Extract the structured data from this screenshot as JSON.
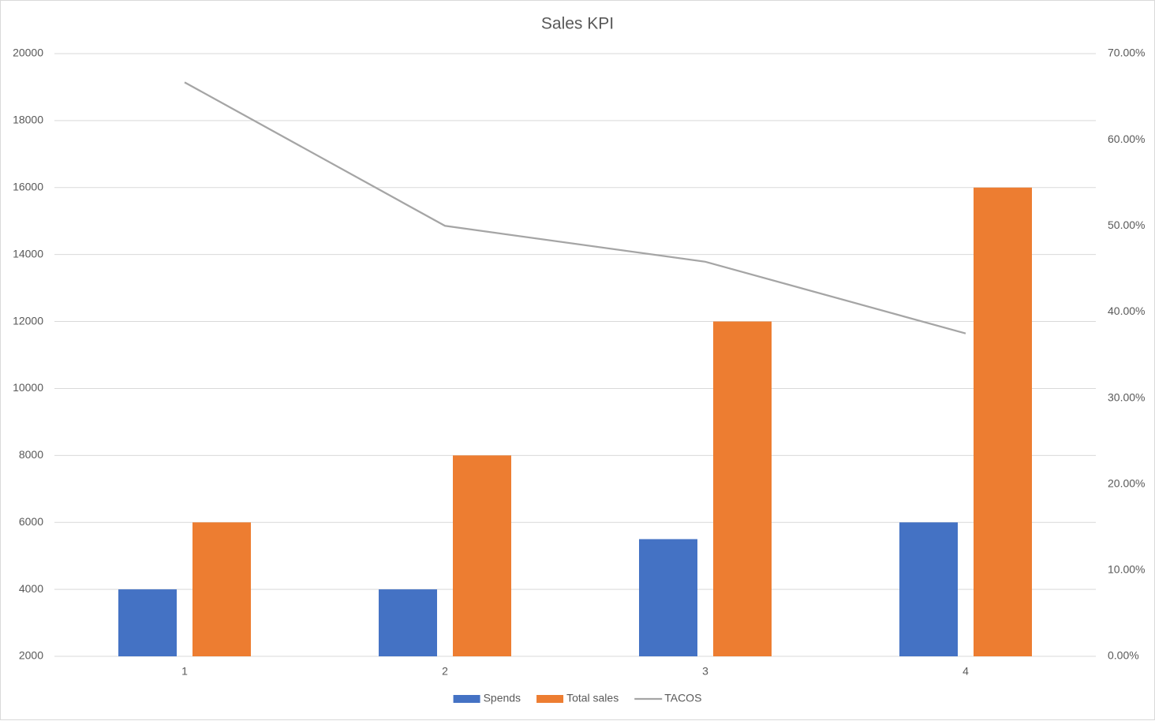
{
  "chart_data": {
    "type": "bar",
    "title": "Sales KPI",
    "categories": [
      "1",
      "2",
      "3",
      "4"
    ],
    "series": [
      {
        "name": "Spends",
        "type": "bar",
        "color": "#4472c4",
        "values": [
          4000,
          4000,
          5500,
          6000
        ]
      },
      {
        "name": "Total sales",
        "type": "bar",
        "color": "#ed7d31",
        "values": [
          6000,
          8000,
          12000,
          16000
        ]
      },
      {
        "name": "TACOS",
        "type": "line",
        "axis": "y2",
        "color": "#a5a5a5",
        "values": [
          66.67,
          50,
          45.83,
          37.5
        ]
      }
    ],
    "ylim": [
      2000,
      20000
    ],
    "yticks": [
      2000,
      4000,
      6000,
      8000,
      10000,
      12000,
      14000,
      16000,
      18000,
      20000
    ],
    "y2lim": [
      0,
      70
    ],
    "y2ticks": [
      {
        "value": 0,
        "label": "0.00%"
      },
      {
        "value": 10,
        "label": "10.00%"
      },
      {
        "value": 20,
        "label": "20.00%"
      },
      {
        "value": 30,
        "label": "30.00%"
      },
      {
        "value": 40,
        "label": "40.00%"
      },
      {
        "value": 50,
        "label": "50.00%"
      },
      {
        "value": 60,
        "label": "60.00%"
      },
      {
        "value": 70,
        "label": "70.00%"
      }
    ],
    "grid": true,
    "legend": "bottom"
  }
}
